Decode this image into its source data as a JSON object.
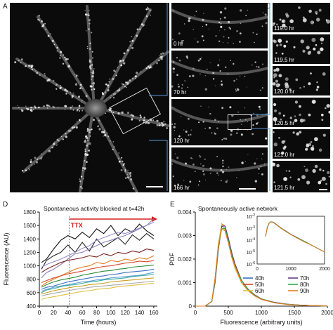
{
  "figure": {
    "panel_labels": {
      "a": "A",
      "b": "B",
      "c": "C",
      "d": "D",
      "e": "E"
    },
    "panel_b_times": [
      "0 hr",
      "70 hr",
      "120 hr",
      "166 hr"
    ],
    "panel_c_times": [
      "119.0 hr",
      "119.5 hr",
      "120.0 hr",
      "120.5 hr",
      "121.0 hr",
      "121.5 hr"
    ]
  },
  "chart_data": [
    {
      "type": "line",
      "panel": "D",
      "title": "Spontaneous activity blocked  at t=42h",
      "annotation": "TTX",
      "annotation_color": "#d42020",
      "event_line_x": 42,
      "xlabel": "Time (hours)",
      "ylabel": "Fluorescence (AU)",
      "xlim": [
        0,
        165
      ],
      "ylim": [
        400,
        1800
      ],
      "xticks": [
        "0",
        "20",
        "40",
        "60",
        "80",
        "100",
        "120",
        "140",
        "160"
      ],
      "yticks": [
        "400",
        "600",
        "800",
        "1000",
        "1200",
        "1400",
        "1600",
        "1800"
      ],
      "x": [
        3,
        10,
        20,
        30,
        40,
        50,
        60,
        70,
        80,
        90,
        100,
        110,
        120,
        130,
        140,
        150,
        160
      ],
      "series": [
        {
          "color": "#111111",
          "values": [
            1050,
            1100,
            1250,
            1380,
            1450,
            1400,
            1500,
            1420,
            1550,
            1480,
            1600,
            1450,
            1550,
            1500,
            1620,
            1520,
            1450
          ]
        },
        {
          "color": "#222222",
          "values": [
            950,
            1080,
            1150,
            1200,
            1310,
            1200,
            1350,
            1220,
            1400,
            1280,
            1350,
            1420,
            1320,
            1460,
            1380,
            1480,
            1400
          ]
        },
        {
          "color": "#9a8fc8",
          "values": [
            980,
            1020,
            1060,
            1100,
            1150,
            1200,
            1260,
            1300,
            1380,
            1420,
            1460,
            1500,
            1480,
            1520,
            1560,
            1600,
            1650
          ]
        },
        {
          "color": "#8a7fb8",
          "values": [
            820,
            900,
            950,
            1020,
            1100,
            1180,
            1200,
            1250,
            1300,
            1350,
            1380,
            1420,
            1450,
            1500,
            1550,
            1600,
            1700
          ]
        },
        {
          "color": "#7a1f1f",
          "values": [
            900,
            950,
            1000,
            1050,
            1080,
            1100,
            1120,
            1150,
            1130,
            1180,
            1150,
            1200,
            1180,
            1220,
            1200,
            1250,
            1230
          ]
        },
        {
          "color": "#e07b20",
          "values": [
            700,
            750,
            800,
            850,
            900,
            950,
            980,
            1000,
            1050,
            1030,
            1080,
            1060,
            1100,
            1080,
            1120,
            1100,
            1150
          ]
        },
        {
          "color": "#d44a2a",
          "values": [
            750,
            780,
            820,
            850,
            880,
            900,
            920,
            950,
            970,
            990,
            1000,
            1020,
            1040,
            1050,
            1070,
            1060,
            1080
          ]
        },
        {
          "color": "#2a8a3a",
          "values": [
            680,
            720,
            760,
            790,
            810,
            830,
            860,
            880,
            900,
            920,
            930,
            950,
            960,
            980,
            990,
            1000,
            1010
          ]
        },
        {
          "color": "#3a6fbf",
          "values": [
            650,
            680,
            700,
            730,
            760,
            780,
            800,
            820,
            840,
            850,
            870,
            880,
            900,
            910,
            920,
            930,
            950
          ]
        },
        {
          "color": "#5aa0d8",
          "values": [
            620,
            650,
            680,
            700,
            720,
            740,
            760,
            770,
            790,
            800,
            820,
            830,
            840,
            850,
            860,
            880,
            900
          ]
        },
        {
          "color": "#3aaa9a",
          "values": [
            600,
            640,
            660,
            690,
            710,
            720,
            740,
            760,
            770,
            790,
            800,
            810,
            820,
            840,
            850,
            860,
            870
          ]
        },
        {
          "color": "#c8a020",
          "values": [
            580,
            600,
            630,
            650,
            670,
            690,
            700,
            720,
            730,
            740,
            760,
            770,
            780,
            790,
            800,
            810,
            820
          ]
        },
        {
          "color": "#a8a8a8",
          "values": [
            550,
            570,
            590,
            610,
            630,
            650,
            660,
            680,
            690,
            700,
            710,
            720,
            730,
            740,
            750,
            760,
            770
          ]
        },
        {
          "color": "#e0c040",
          "values": [
            500,
            520,
            540,
            560,
            580,
            600,
            620,
            630,
            650,
            660,
            670,
            690,
            700,
            710,
            720,
            730,
            740
          ]
        }
      ]
    },
    {
      "type": "line",
      "panel": "E",
      "title": "Spontaneously active network",
      "xlabel": "Fluorescence (arbitrary units)",
      "ylabel": "PDF",
      "xlim": [
        0,
        2000
      ],
      "ylim": [
        0,
        0.004
      ],
      "xticks": [
        "0",
        "500",
        "1000",
        "1500",
        "2000"
      ],
      "yticks": [
        "0",
        "0.001",
        "0.002",
        "0.003",
        "0.004"
      ],
      "x": [
        0,
        150,
        250,
        300,
        350,
        400,
        450,
        500,
        550,
        600,
        700,
        800,
        900,
        1000,
        1200,
        1400,
        1600,
        1800,
        2000
      ],
      "series": [
        {
          "name": "40h",
          "color": "#3a6fbf",
          "values": [
            0,
            0,
            0.0002,
            0.0012,
            0.0026,
            0.0034,
            0.0033,
            0.0028,
            0.0022,
            0.0017,
            0.0011,
            0.0007,
            0.00045,
            0.0003,
            0.00015,
            8e-05,
            4e-05,
            2e-05,
            1e-05
          ]
        },
        {
          "name": "50h",
          "color": "#d44a2a",
          "values": [
            0,
            0,
            0.0002,
            0.0011,
            0.0025,
            0.0035,
            0.0034,
            0.0029,
            0.0023,
            0.0018,
            0.0011,
            0.0007,
            0.00047,
            0.0003,
            0.00015,
            8e-05,
            4e-05,
            2e-05,
            1e-05
          ]
        },
        {
          "name": "60h",
          "color": "#e0c040",
          "values": [
            0,
            0,
            0.0002,
            0.0012,
            0.0027,
            0.0035,
            0.0032,
            0.0027,
            0.0021,
            0.0016,
            0.001,
            0.00065,
            0.00043,
            0.00028,
            0.00014,
            7e-05,
            4e-05,
            2e-05,
            1e-05
          ]
        },
        {
          "name": "70h",
          "color": "#6a3a8a",
          "values": [
            0,
            0,
            0.0002,
            0.001,
            0.0024,
            0.0034,
            0.0034,
            0.0029,
            0.0023,
            0.0018,
            0.0011,
            0.00072,
            0.00048,
            0.00031,
            0.00016,
            8e-05,
            4e-05,
            2e-05,
            1e-05
          ]
        },
        {
          "name": "80h",
          "color": "#3aaa4a",
          "values": [
            0,
            0,
            0.0002,
            0.0011,
            0.0025,
            0.0033,
            0.0033,
            0.0028,
            0.0022,
            0.0017,
            0.0011,
            0.0007,
            0.00046,
            0.0003,
            0.00015,
            8e-05,
            4e-05,
            2e-05,
            1e-05
          ]
        },
        {
          "name": "90h",
          "color": "#e07b20",
          "values": [
            0,
            0,
            0.0002,
            0.0012,
            0.0026,
            0.0033,
            0.0032,
            0.0027,
            0.0021,
            0.0017,
            0.001,
            0.00066,
            0.00044,
            0.00029,
            0.00014,
            7e-05,
            4e-05,
            2e-05,
            1e-05
          ]
        }
      ],
      "inset": {
        "type": "line",
        "log_scale_y": true,
        "xlim": [
          0,
          2000
        ],
        "ylim": [
          1e-06,
          0.01
        ],
        "xticks": [
          "0",
          "1000",
          "2000"
        ],
        "ytick_exponents": [
          "-2",
          "-3",
          "-4",
          "-5",
          "-6"
        ]
      }
    }
  ]
}
